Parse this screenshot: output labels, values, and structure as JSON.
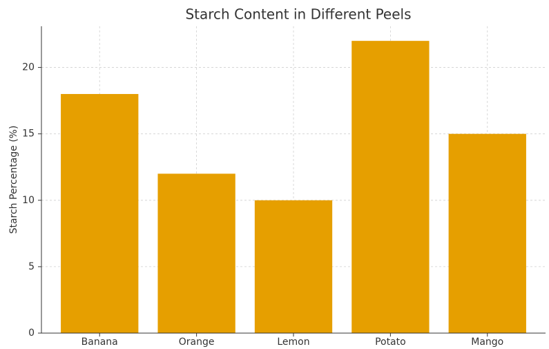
{
  "chart_data": {
    "type": "bar",
    "title": "Starch Content in Different Peels",
    "y_label": "Starch Percentage (%)",
    "categories": [
      "Banana",
      "Orange",
      "Lemon",
      "Potato",
      "Mango"
    ],
    "values": [
      18,
      12,
      10,
      22,
      15
    ],
    "color": "#e69f00",
    "ylim": [
      0,
      23.1
    ],
    "yticks": [
      0,
      5,
      10,
      15,
      20
    ],
    "grid": true
  }
}
